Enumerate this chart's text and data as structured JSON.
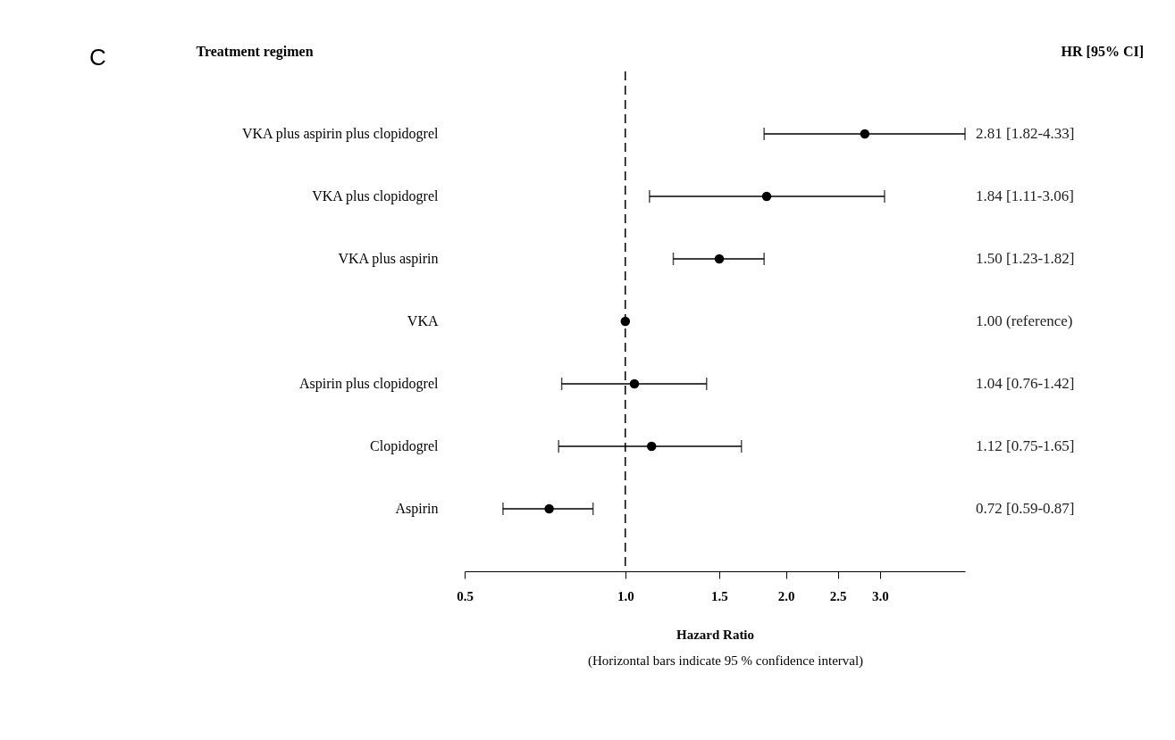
{
  "chart_data": {
    "type": "scatter",
    "orientation": "horizontal",
    "log": "x",
    "color": "#000000",
    "marker": "circle",
    "grid": false,
    "title": null,
    "ylabel": "Treatment regimen",
    "xlabel": "Hazard Ratio",
    "annotations": [
      "C",
      "HR [95% CI]",
      "(Horizontal bars indicate 95 % confidence interval)"
    ],
    "categories": [
      "VKA plus aspirin plus clopidogrel",
      "VKA plus clopidogrel",
      "VKA plus aspirin",
      "VKA",
      "Aspirin plus clopidogrel",
      "Clopidogrel",
      "Aspirin"
    ],
    "values": [
      2.81,
      1.84,
      1.5,
      1.0,
      1.04,
      1.12,
      0.72
    ],
    "errors": [
      [
        1.82,
        4.33
      ],
      [
        1.11,
        3.06
      ],
      [
        1.23,
        1.82
      ],
      null,
      [
        0.76,
        1.42
      ],
      [
        0.75,
        1.65
      ],
      [
        0.59,
        0.87
      ]
    ],
    "value_labels": [
      "2.81 [1.82-4.33]",
      "1.84 [1.11-3.06]",
      "1.50 [1.23-1.82]",
      "1.00 (reference)",
      "1.04 [0.76-1.42]",
      "1.12 [0.75-1.65]",
      "0.72 [0.59-0.87]"
    ],
    "xlim": [
      0.5,
      4.33
    ],
    "xticks": [
      {
        "value": 0.5,
        "label": "0.5"
      },
      {
        "value": 1,
        "label": "1.0"
      },
      {
        "value": 1.5,
        "label": "1.5"
      },
      {
        "value": 2,
        "label": "2.0"
      },
      {
        "value": 2.5,
        "label": "2.5"
      },
      {
        "value": 3,
        "label": "3.0"
      }
    ],
    "ref_lines": [
      {
        "axis": "x",
        "value": 1,
        "label": null,
        "line_style": "dashed"
      }
    ]
  }
}
